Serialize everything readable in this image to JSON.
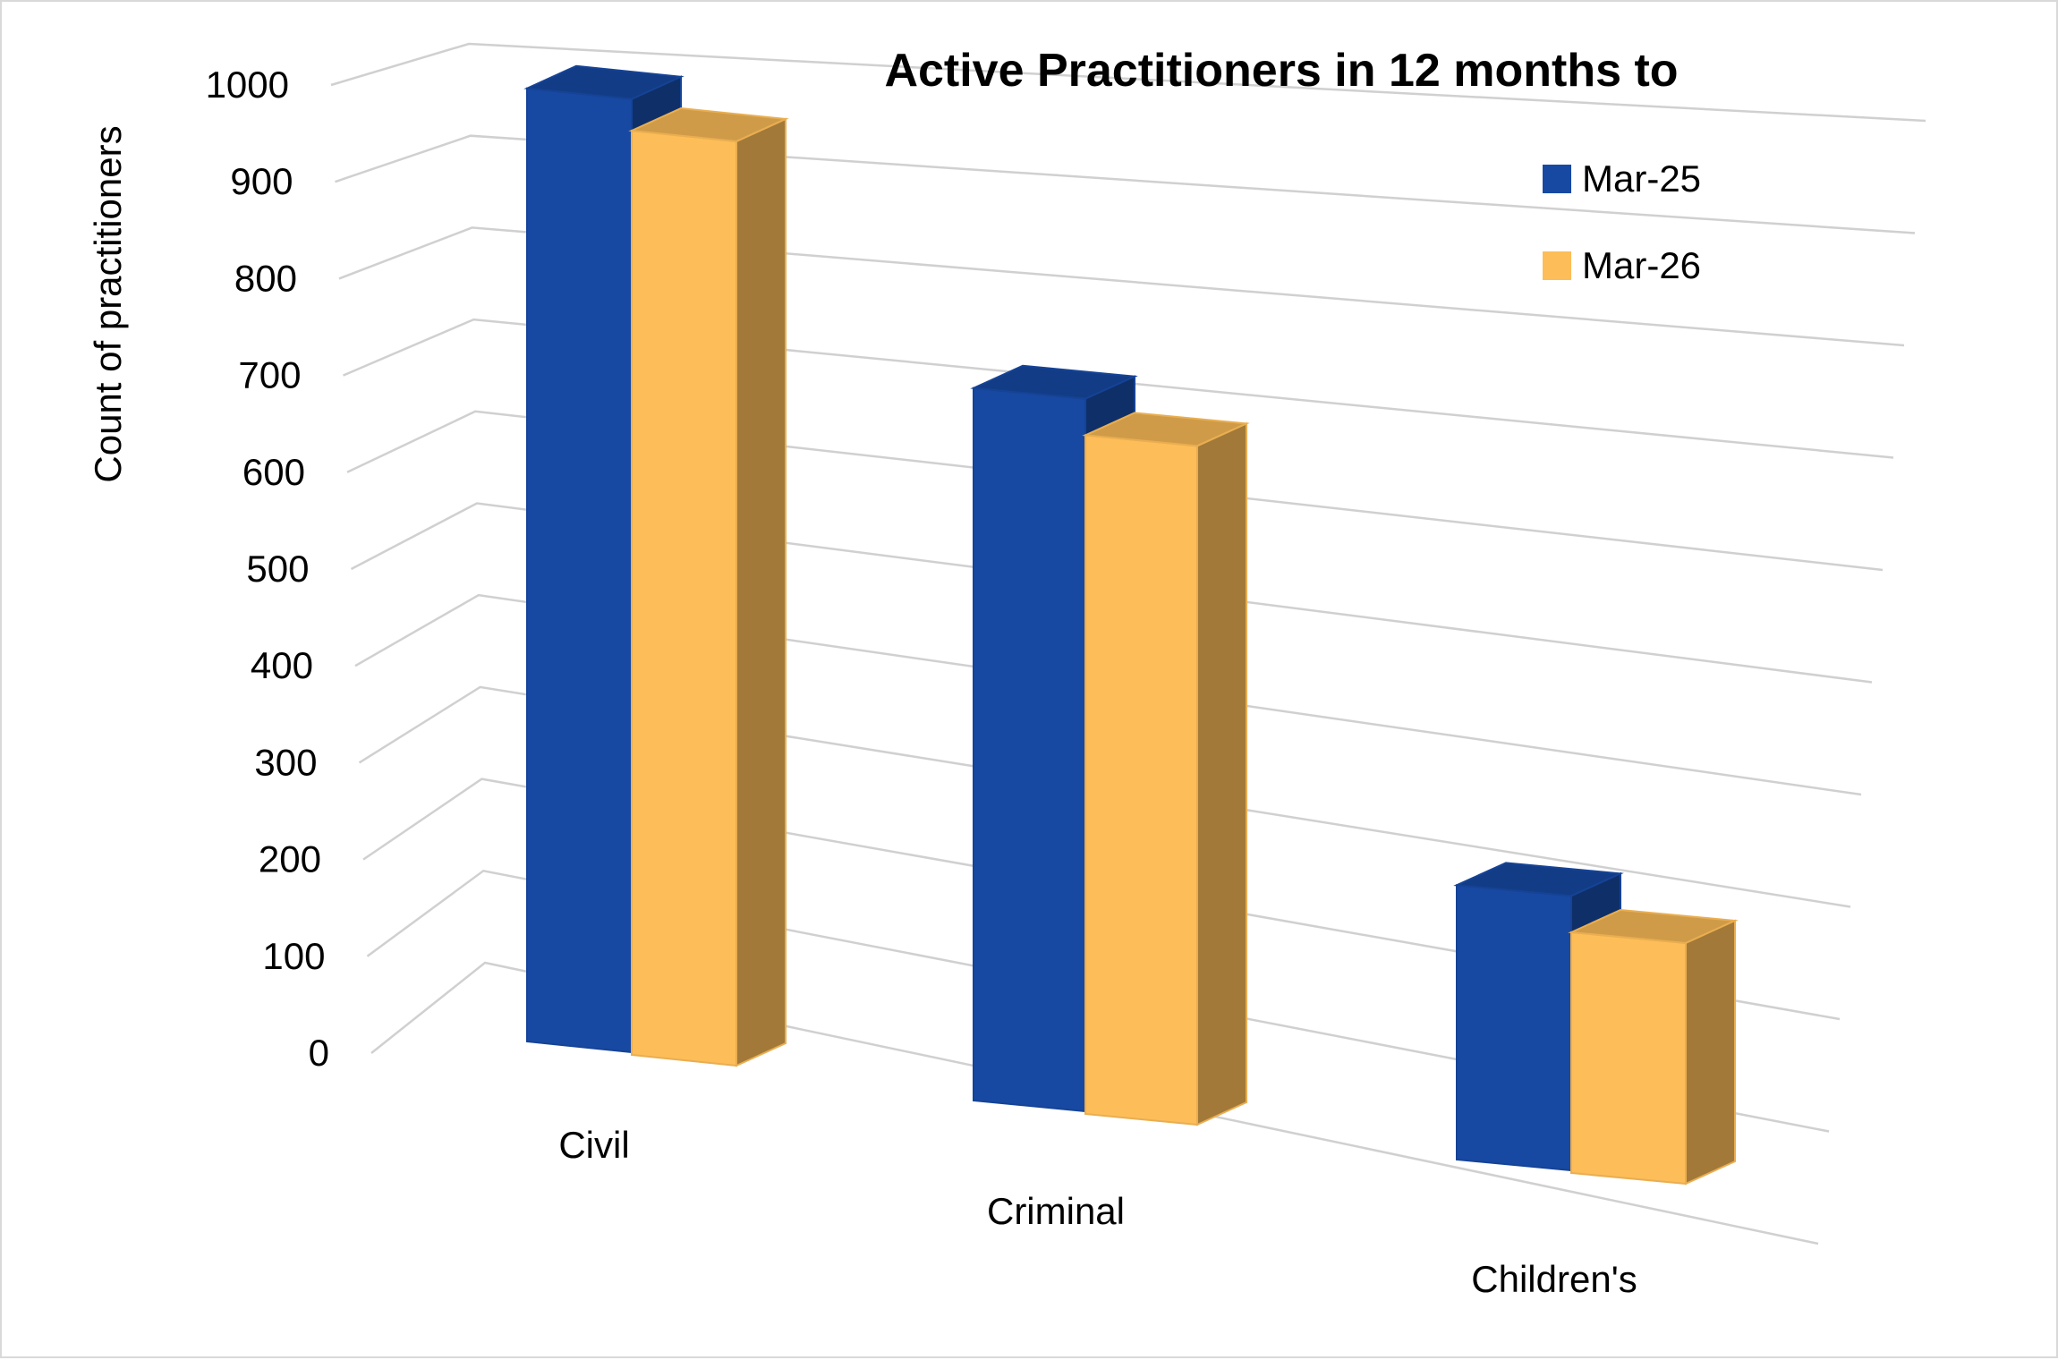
{
  "chart_data": {
    "type": "bar",
    "title": "Active Practitioners in 12 months to",
    "xlabel": "",
    "ylabel": "Count of practitioners",
    "categories": [
      "Civil",
      "Criminal",
      "Children's"
    ],
    "series": [
      {
        "name": "Mar-25",
        "values": [
          990,
          740,
          285
        ],
        "color": "#1749a3"
      },
      {
        "name": "Mar-26",
        "values": [
          960,
          705,
          250
        ],
        "color": "#fdbd58"
      }
    ],
    "ylim": [
      0,
      1000
    ],
    "yticks": [
      0,
      100,
      200,
      300,
      400,
      500,
      600,
      700,
      800,
      900,
      1000
    ],
    "grid": true,
    "legend": "top-right",
    "style": "3d-column"
  }
}
